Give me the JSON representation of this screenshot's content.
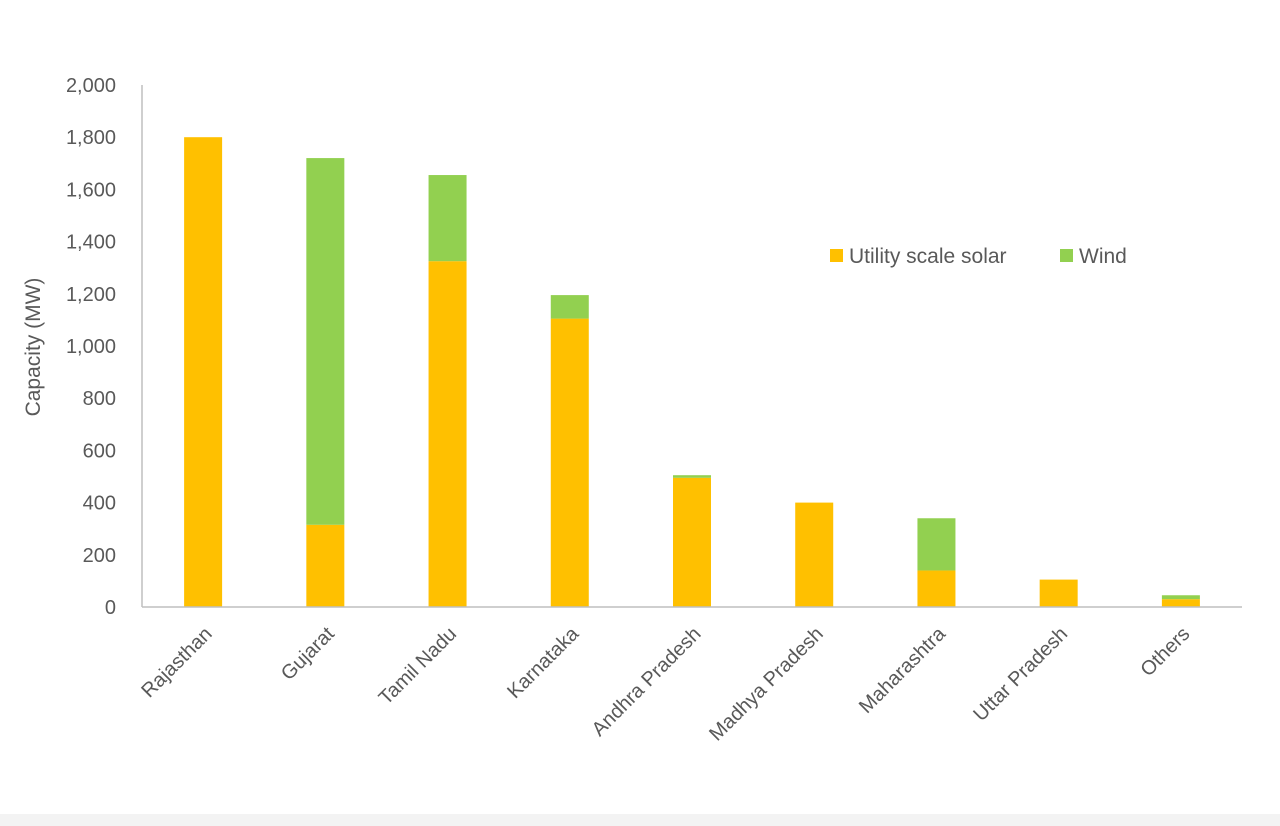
{
  "chart_data": {
    "type": "bar",
    "stacked": true,
    "title": "",
    "xlabel": "",
    "ylabel": "Capacity (MW)",
    "ylim": [
      0,
      2000
    ],
    "yticks": [
      0,
      200,
      400,
      600,
      800,
      1000,
      1200,
      1400,
      1600,
      1800,
      2000
    ],
    "ytick_labels": [
      "0",
      "200",
      "400",
      "600",
      "800",
      "1,000",
      "1,200",
      "1,400",
      "1,600",
      "1,800",
      "2,000"
    ],
    "categories": [
      "Rajasthan",
      "Gujarat",
      "Tamil Nadu",
      "Karnataka",
      "Andhra Pradesh",
      "Madhya Pradesh",
      "Maharashtra",
      "Uttar Pradesh",
      "Others"
    ],
    "series": [
      {
        "name": "Utility scale solar",
        "color": "#FFC000",
        "values": [
          1800,
          315,
          1325,
          1105,
          495,
          400,
          140,
          105,
          30
        ]
      },
      {
        "name": "Wind",
        "color": "#92D050",
        "values": [
          0,
          1405,
          330,
          90,
          10,
          0,
          200,
          0,
          15
        ]
      }
    ],
    "grid": false,
    "legend": {
      "position": "right-middle",
      "orientation": "horizontal"
    }
  }
}
